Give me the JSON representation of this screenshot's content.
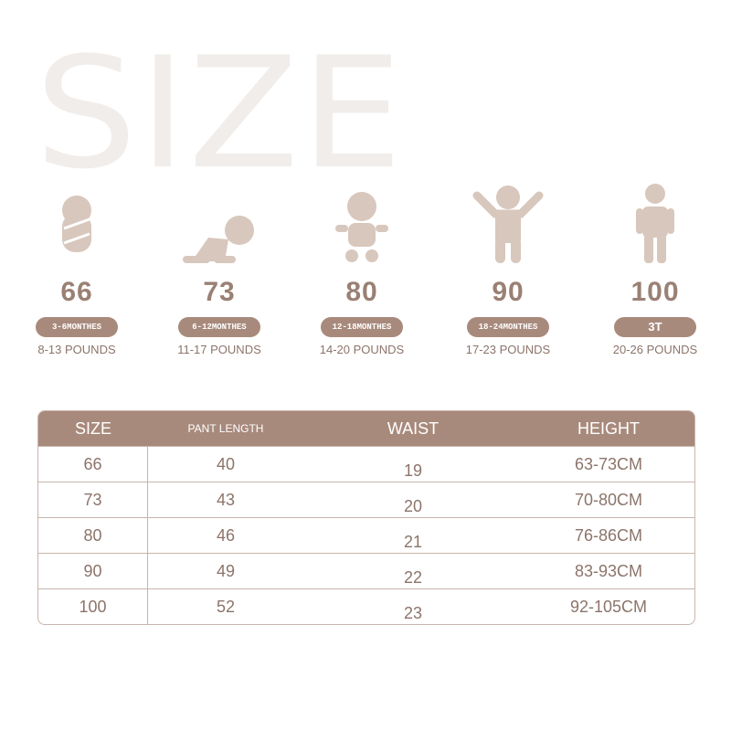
{
  "title": "SIZE",
  "sizes": [
    {
      "num": "66",
      "age": "3-6MONTHES",
      "weight": "8-13 POUNDS",
      "icon": "swaddled-baby-icon"
    },
    {
      "num": "73",
      "age": "6-12MONTHES",
      "weight": "11-17 POUNDS",
      "icon": "crawling-baby-icon"
    },
    {
      "num": "80",
      "age": "12-18MONTHES",
      "weight": "14-20 POUNDS",
      "icon": "sitting-baby-icon"
    },
    {
      "num": "90",
      "age": "18-24MONTHES",
      "weight": "17-23 POUNDS",
      "icon": "toddler-arms-up-icon"
    },
    {
      "num": "100",
      "age": "3T",
      "weight": "20-26 POUNDS",
      "icon": "standing-child-icon"
    }
  ],
  "table": {
    "headers": [
      "SIZE",
      "PANT LENGTH",
      "WAIST",
      "HEIGHT"
    ],
    "rows": [
      [
        "66",
        "40",
        "19",
        "63-73CM"
      ],
      [
        "73",
        "43",
        "20",
        "70-80CM"
      ],
      [
        "80",
        "46",
        "21",
        "76-86CM"
      ],
      [
        "90",
        "49",
        "22",
        "83-93CM"
      ],
      [
        "100",
        "52",
        "23",
        "92-105CM"
      ]
    ]
  },
  "colors": {
    "accent": "#a88a7c",
    "icon": "#d8c7bc",
    "text": "#8c746a",
    "watermark": "#f1edea"
  }
}
